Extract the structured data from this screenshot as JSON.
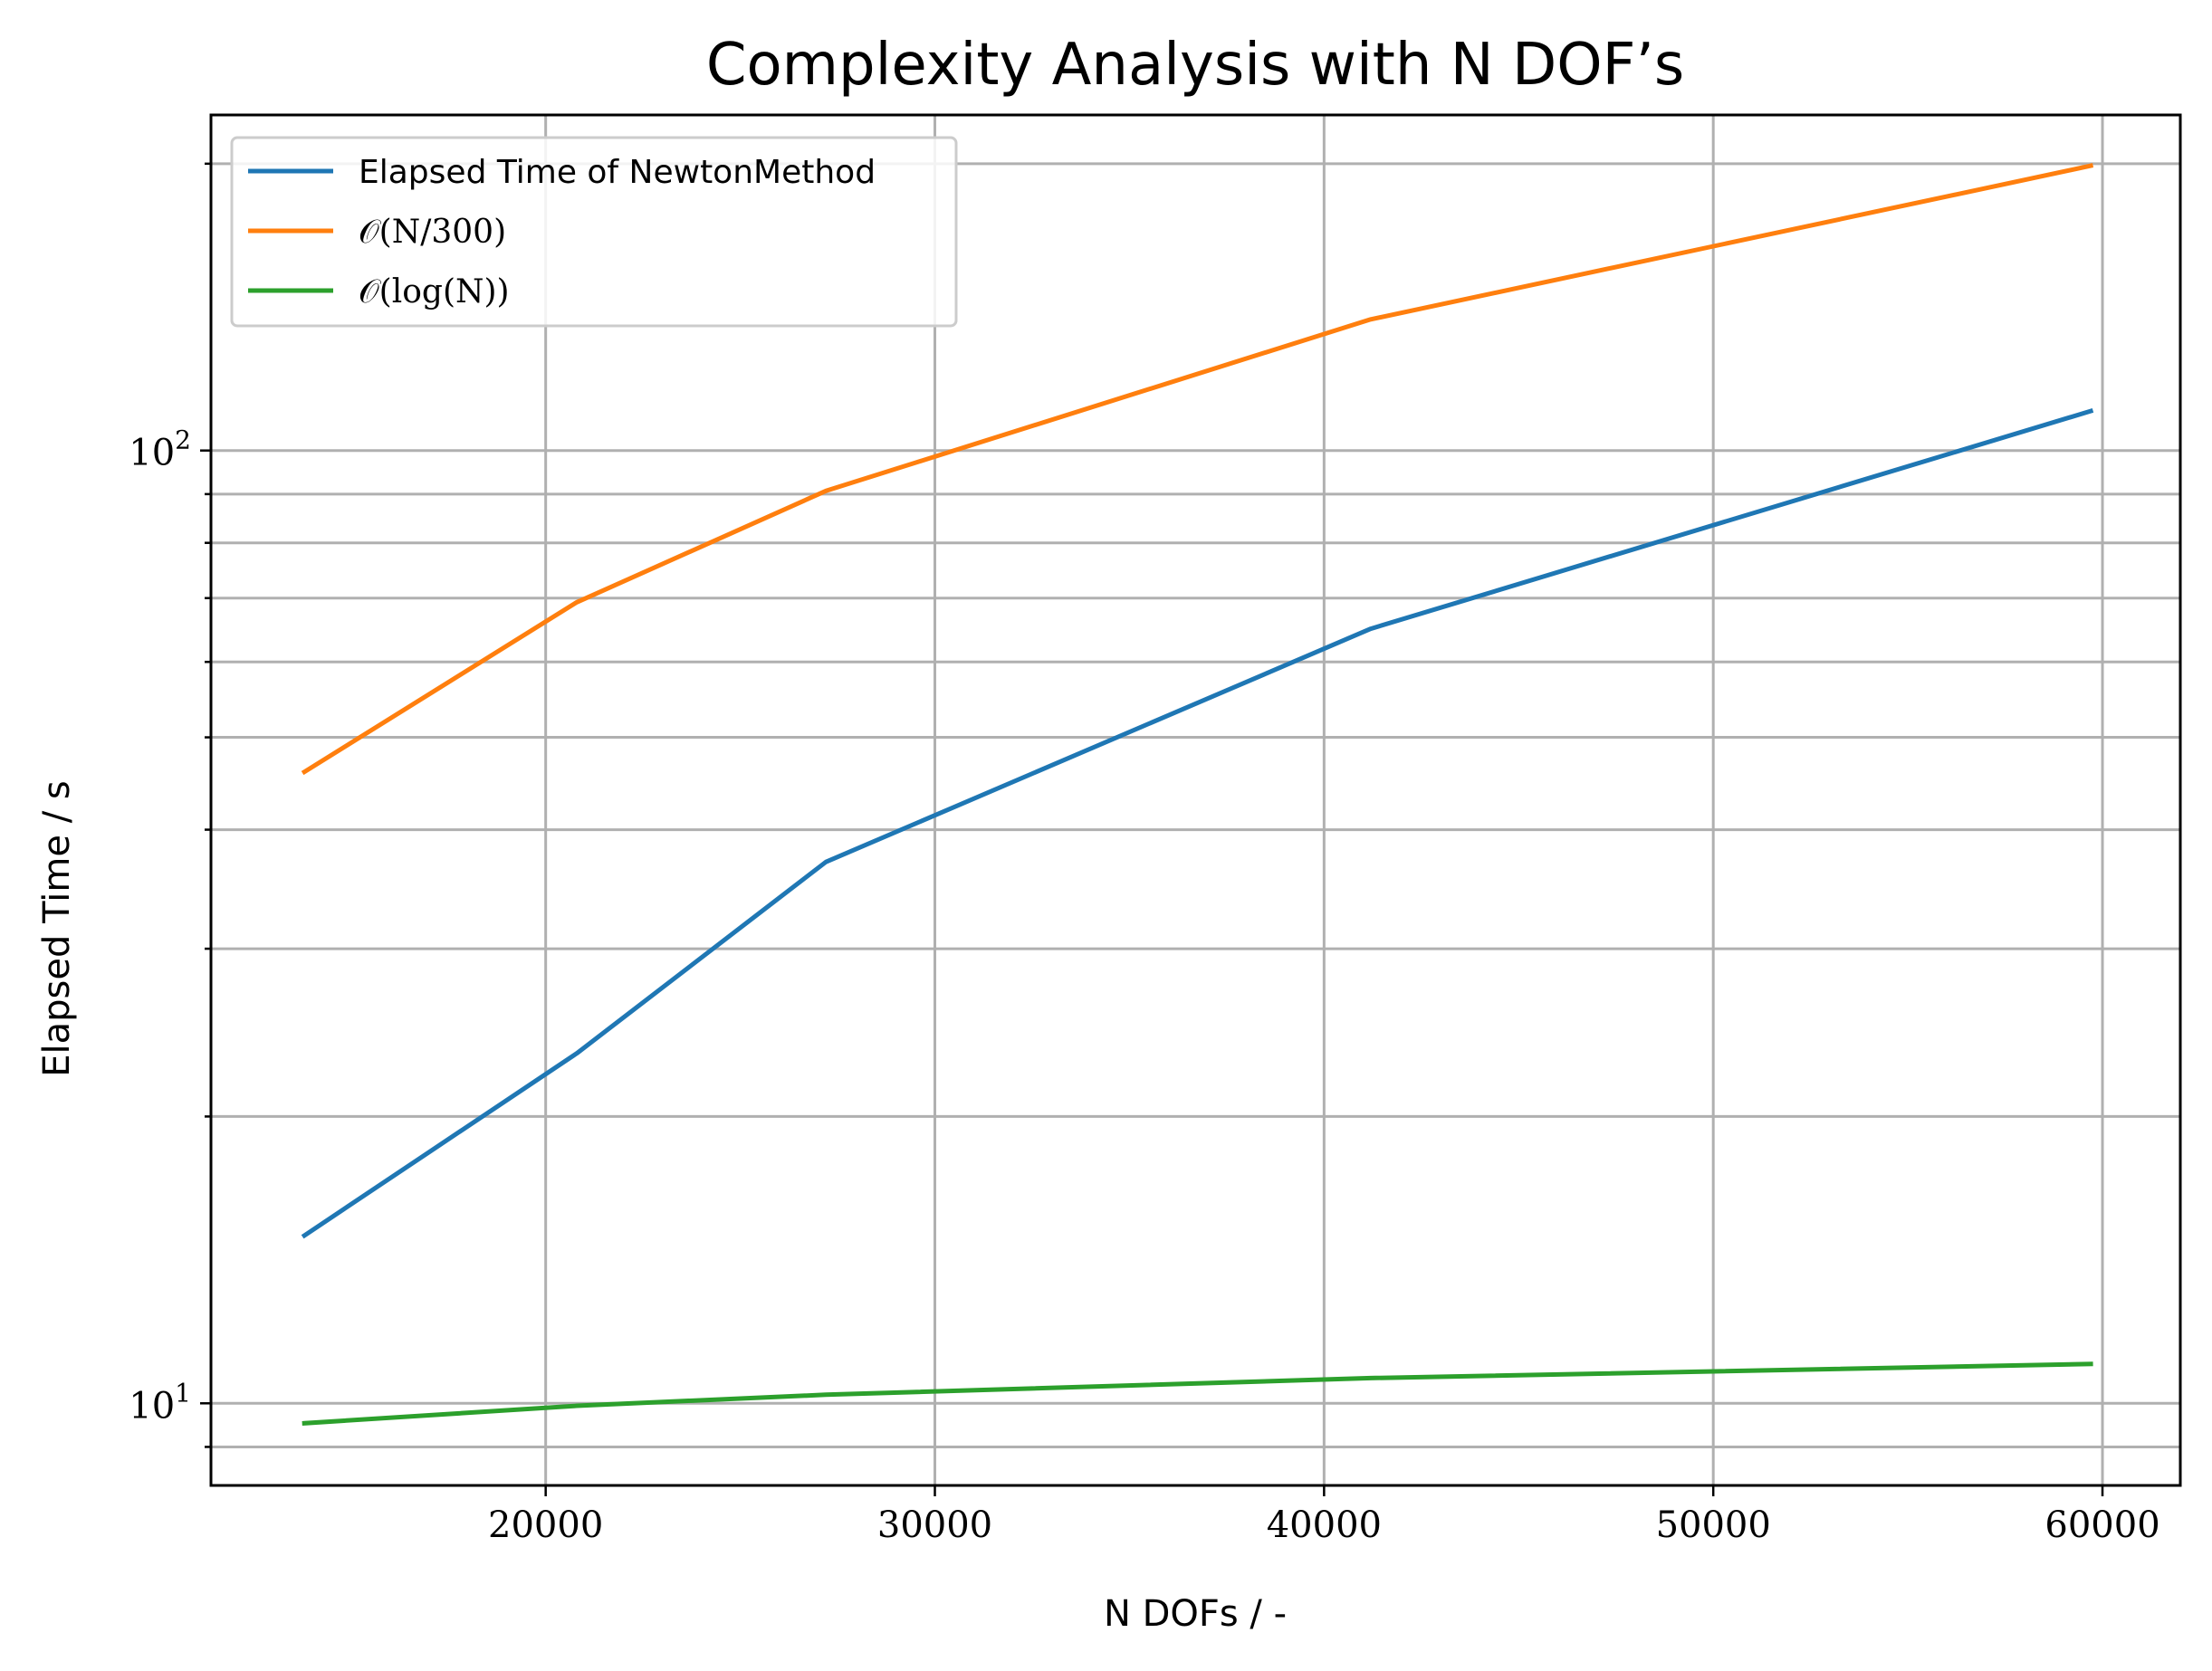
{
  "chart_data": {
    "type": "line",
    "title": "Complexity Analysis with N DOF’s",
    "xlabel": "N DOFs / -",
    "ylabel": "Elapsed Time / s",
    "xscale": "linear",
    "yscale": "log",
    "xlim": [
      11400,
      62000
    ],
    "ylim": [
      8.2,
      225
    ],
    "grid": true,
    "legend_position": "top-left",
    "x_ticks": [
      {
        "value": 20000,
        "label": "20000"
      },
      {
        "value": 30000,
        "label": "30000"
      },
      {
        "value": 40000,
        "label": "40000"
      },
      {
        "value": 50000,
        "label": "50000"
      },
      {
        "value": 60000,
        "label": "60000"
      }
    ],
    "y_major_ticks": [
      {
        "value": 10,
        "base": "10",
        "exp": "1"
      },
      {
        "value": 100,
        "base": "10",
        "exp": "2"
      }
    ],
    "y_minor_ticks": [
      9,
      20,
      30,
      40,
      50,
      60,
      70,
      80,
      90,
      200
    ],
    "x": [
      13800,
      20800,
      27200,
      41200,
      59700
    ],
    "series": [
      {
        "name": "Elapsed Time of NewtonMethod",
        "name_style": "text",
        "color": "#1f77b4",
        "values": [
          15.0,
          23.3,
          37.0,
          65.0,
          110.0
        ]
      },
      {
        "name": "𝒪(N/300)",
        "name_style": "math",
        "color": "#ff7f0e",
        "values": [
          46.0,
          69.3,
          90.7,
          137.3,
          199.0
        ]
      },
      {
        "name": "𝒪(log(N))",
        "name_style": "math",
        "color": "#2ca02c",
        "values": [
          9.53,
          9.94,
          10.21,
          10.63,
          10.997
        ]
      }
    ]
  }
}
